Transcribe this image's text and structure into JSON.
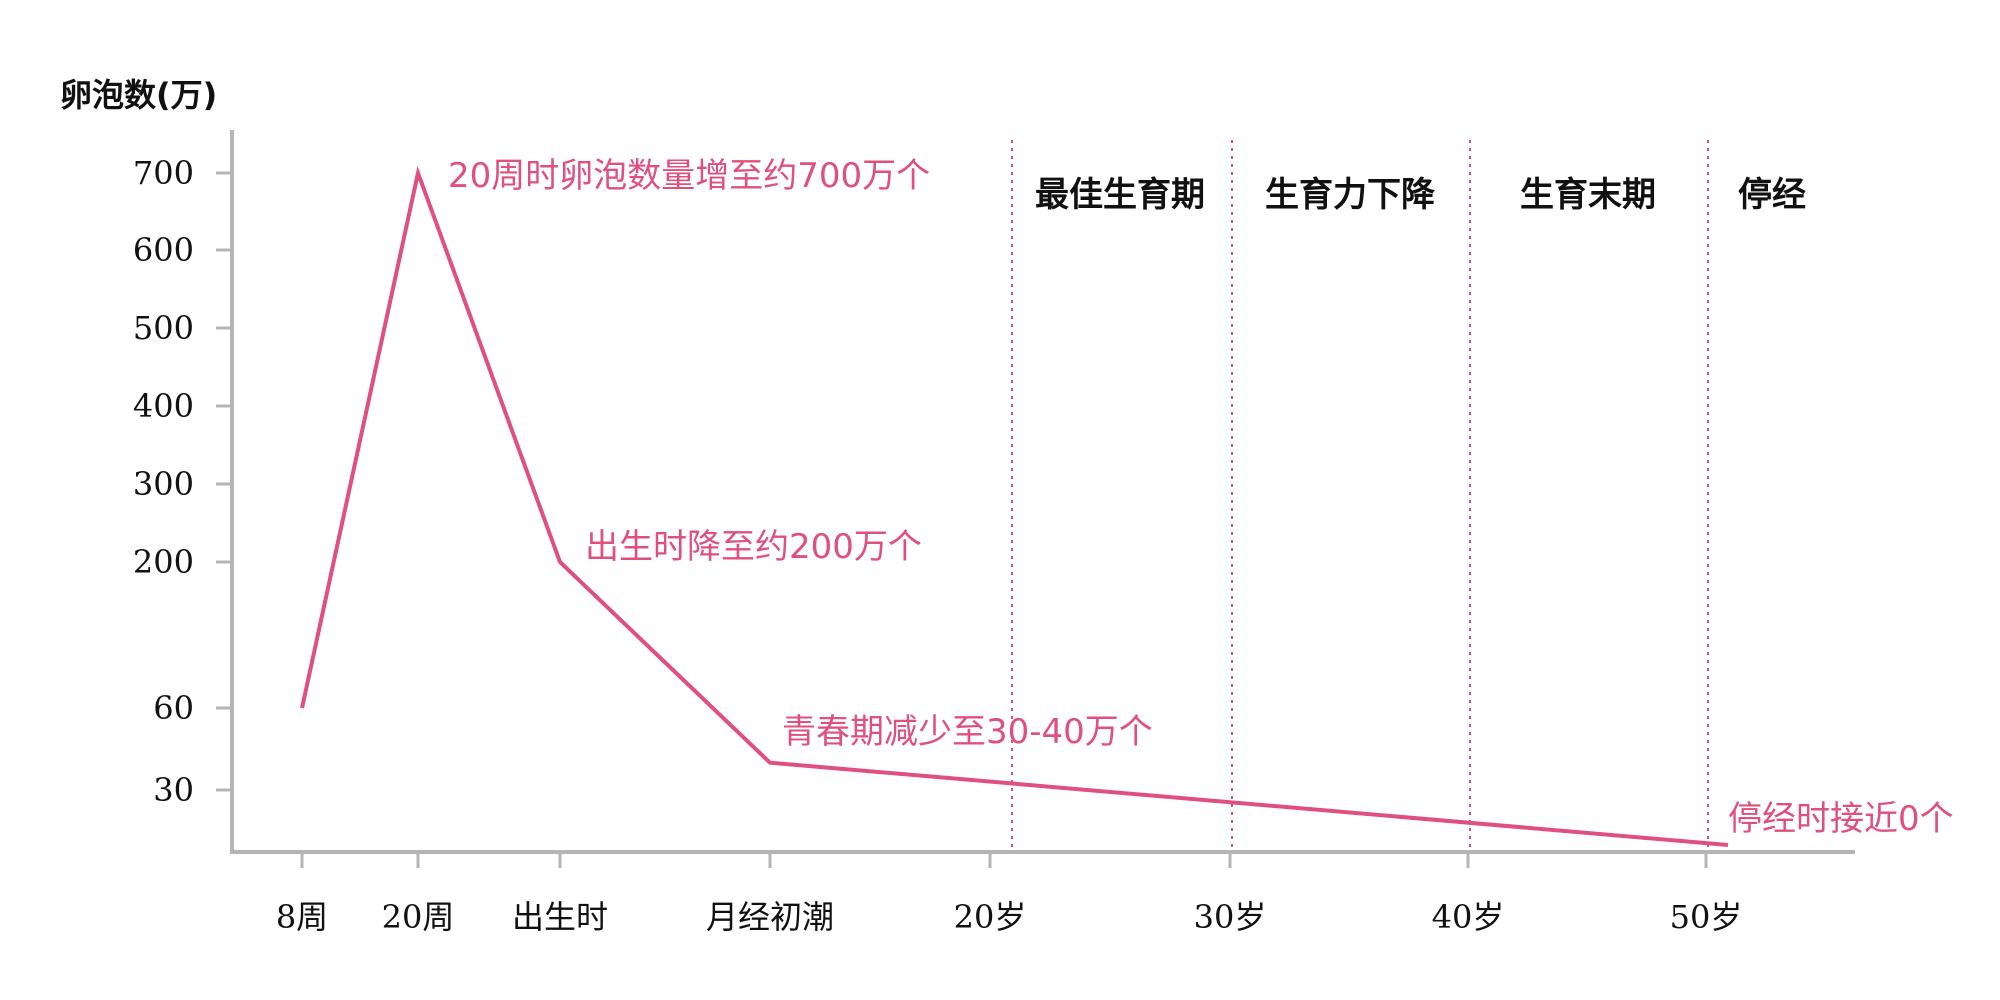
{
  "chart_data": {
    "type": "line",
    "title": "",
    "ylabel": "卵泡数(万)",
    "xlabel": "",
    "yticks": [
      30,
      60,
      200,
      300,
      400,
      500,
      600,
      700
    ],
    "categories": [
      "8周",
      "20周",
      "出生时",
      "月经初潮",
      "20岁",
      "30岁",
      "40岁",
      "50岁"
    ],
    "series": [
      {
        "color": "#e0507e",
        "points": [
          {
            "x": "8周",
            "y": 60
          },
          {
            "x": "20周",
            "y": 700
          },
          {
            "x": "出生时",
            "y": 200
          },
          {
            "x": "月经初潮",
            "y": 40
          },
          {
            "x": "50岁",
            "y": 0
          }
        ]
      }
    ],
    "phases": [
      {
        "label": "最佳生育期",
        "start": "20岁",
        "end": "30岁"
      },
      {
        "label": "生育力下降",
        "start": "30岁",
        "end": "40岁"
      },
      {
        "label": "生育末期",
        "start": "40岁",
        "end": "50岁"
      },
      {
        "label": "停经",
        "start": "50岁",
        "end": ""
      }
    ],
    "annotations": [
      {
        "text": "20周时卵泡数量增至约700万个",
        "at": "20周"
      },
      {
        "text": "出生时降至约200万个",
        "at": "出生时"
      },
      {
        "text": "青春期减少至30-40万个",
        "at": "月经初潮"
      },
      {
        "text": "停经时接近0个",
        "at": "50岁"
      }
    ],
    "grid": false,
    "legend": "none",
    "colors": {
      "line": "#e0507e",
      "axis": "#b5b5b5",
      "divider": "#e0507e",
      "text": "#111111"
    }
  }
}
